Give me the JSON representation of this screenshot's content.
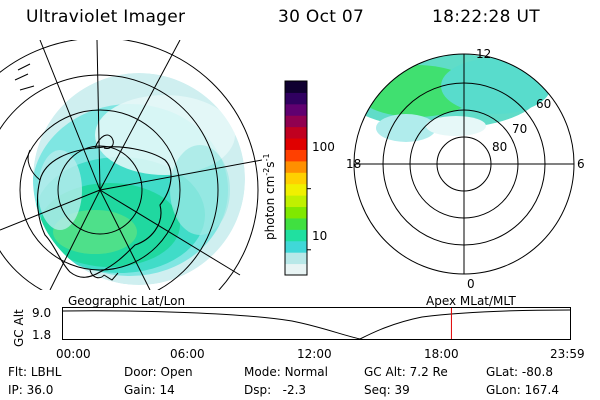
{
  "header": {
    "instrument": "Ultraviolet Imager",
    "date": "30 Oct 07",
    "time": "18:22:28 UT"
  },
  "colorbar": {
    "label": "photon cm",
    "label_sup1": "-2",
    "label_mid": "s",
    "label_sup2": "-1",
    "ticks": [
      {
        "value": 100,
        "label": "100"
      },
      {
        "value": 10,
        "label": "10"
      }
    ],
    "colors": [
      "#e8f4f4",
      "#b8e8e8",
      "#40d8d8",
      "#20e0a0",
      "#40e040",
      "#80e800",
      "#c0f000",
      "#f0f000",
      "#ffd000",
      "#ff9000",
      "#ff4000",
      "#e00000",
      "#c00020",
      "#900050",
      "#600070",
      "#300060",
      "#100030"
    ]
  },
  "polar_plot": {
    "label": "Apex  MLat/MLT",
    "mlt_labels": {
      "top": "12",
      "left": "18",
      "right": "6",
      "bottom": "0"
    },
    "lat_labels": [
      "60",
      "70",
      "80"
    ]
  },
  "geo_plot": {
    "label": "Geographic Lat/Lon"
  },
  "orbit": {
    "ylabel": "GC Alt",
    "yticks": [
      "9.0",
      "1.8"
    ],
    "xticks": [
      "00:00",
      "06:00",
      "12:00",
      "18:00",
      "23:59"
    ],
    "current_time": "18:22:28"
  },
  "footer": {
    "flt_label": "Flt:",
    "flt": "LBHL",
    "ip_label": "IP:",
    "ip": "36.0",
    "door_label": "Door:",
    "door": "Open",
    "gain_label": "Gain:",
    "gain": "14",
    "mode_label": "Mode:",
    "mode": "Normal",
    "dsp_label": "Dsp:",
    "dsp": "-2.3",
    "gcalt_label": "GC Alt:",
    "gcalt": "7.2 Re",
    "seq_label": "Seq:",
    "seq": "39",
    "glat_label": "GLat:",
    "glat": "-80.8",
    "glon_label": "GLon:",
    "glon": "167.4"
  }
}
